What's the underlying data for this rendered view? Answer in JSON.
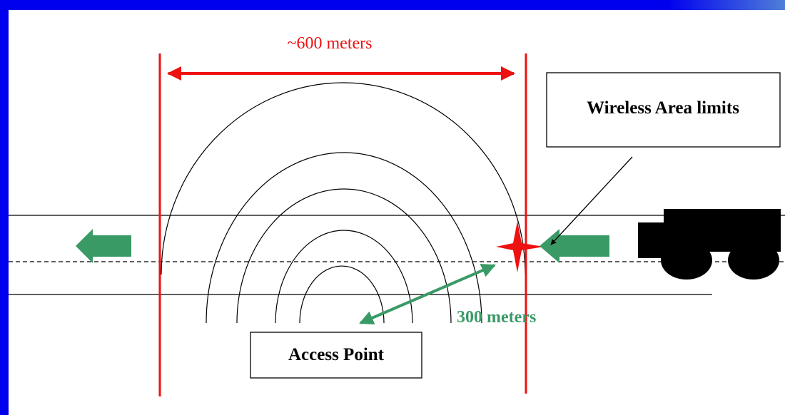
{
  "labels": {
    "width_measure": "~600 meters",
    "radius_measure": "300 meters",
    "access_point": "Access Point",
    "wireless_limits": "Wireless Area limits"
  },
  "colors": {
    "frame_blue": "#0000ee",
    "limit_red": "#ee1111",
    "arrow_green": "#3a9a66",
    "ink": "#000000",
    "background": "#ffffff"
  }
}
